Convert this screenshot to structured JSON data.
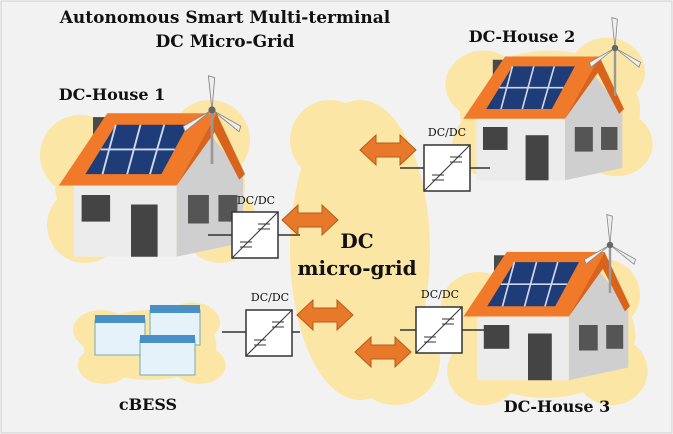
{
  "title": {
    "line1": "Autonomous Smart Multi-terminal",
    "line2": "DC Micro-Grid"
  },
  "center": {
    "line1": "DC",
    "line2": "micro-grid"
  },
  "nodes": [
    {
      "label": "DC-House 1"
    },
    {
      "label": "DC-House 2"
    },
    {
      "label": "DC-House 3"
    },
    {
      "label": "cBESS"
    }
  ],
  "converters": [
    {
      "label": "DC/DC"
    },
    {
      "label": "DC/DC"
    },
    {
      "label": "DC/DC"
    },
    {
      "label": "DC/DC"
    }
  ]
}
